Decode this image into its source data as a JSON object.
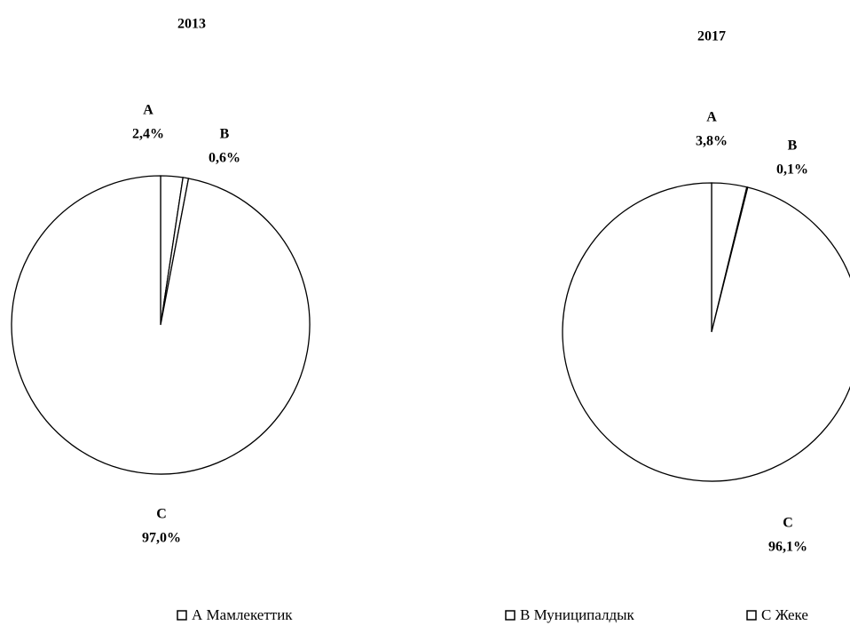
{
  "chart_data": [
    {
      "type": "pie",
      "title": "2013",
      "categories": [
        "A",
        "B",
        "C"
      ],
      "values": [
        2.4,
        0.6,
        97.0
      ],
      "value_labels": [
        "2,4%",
        "0,6%",
        "97,0%"
      ],
      "colors": [
        "#ffffff",
        "#ffffff",
        "#ffffff"
      ]
    },
    {
      "type": "pie",
      "title": "2017",
      "categories": [
        "A",
        "B",
        "C"
      ],
      "values": [
        3.8,
        0.1,
        96.1
      ],
      "value_labels": [
        "3,8%",
        "0,1%",
        "96,1%"
      ],
      "colors": [
        "#ffffff",
        "#ffffff",
        "#ffffff"
      ]
    }
  ],
  "legend": {
    "entries": [
      "А Мамлекеттик",
      "В Муниципалдык",
      "С Жеке"
    ]
  }
}
